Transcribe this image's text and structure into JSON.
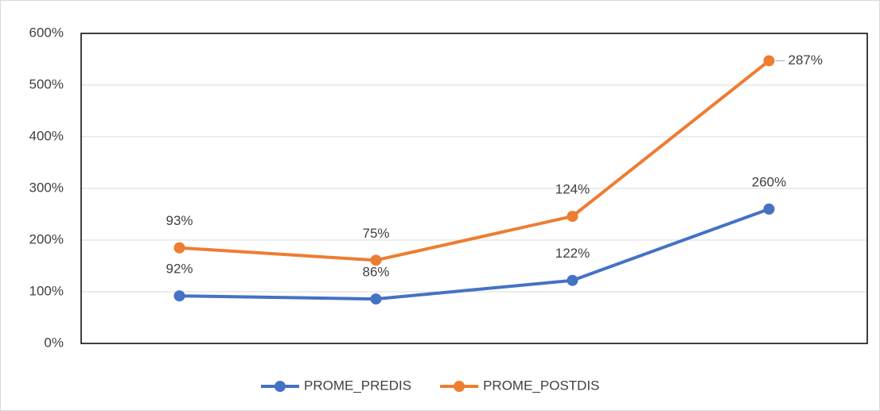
{
  "chart_data": {
    "type": "line",
    "stacked": true,
    "categories": [
      null,
      null,
      null,
      null
    ],
    "series": [
      {
        "name": "PROME_PREDIS",
        "color": "#4472c4",
        "values": [
          92,
          86,
          122,
          260
        ],
        "value_labels": [
          "92%",
          "86%",
          "122%",
          "260%"
        ]
      },
      {
        "name": "PROME_POSTDIS",
        "color": "#ed7d31",
        "values": [
          93,
          75,
          124,
          287
        ],
        "value_labels": [
          "93%",
          "75%",
          "124%",
          "287%"
        ]
      }
    ],
    "ylim": [
      0,
      600
    ],
    "yticks": [
      {
        "value": 0,
        "label": "0%"
      },
      {
        "value": 100,
        "label": "100%"
      },
      {
        "value": 200,
        "label": "200%"
      },
      {
        "value": 300,
        "label": "300%"
      },
      {
        "value": 400,
        "label": "400%"
      },
      {
        "value": 500,
        "label": "500%"
      },
      {
        "value": 600,
        "label": "600%"
      }
    ],
    "grid": true,
    "legend": "bottom"
  }
}
